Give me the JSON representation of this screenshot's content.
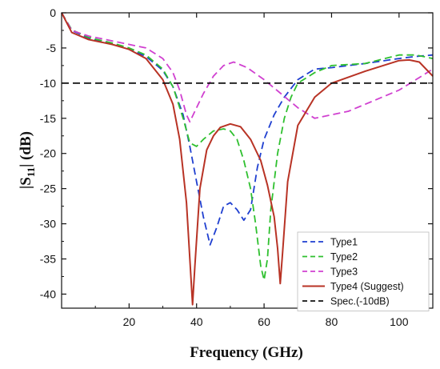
{
  "chart_data": {
    "type": "line",
    "xlabel": "Frequency (GHz)",
    "ylabel": "|S11| (dB)",
    "ylabel_parts": {
      "open": "|S",
      "sub": "11",
      "close": "| (dB)"
    },
    "xlim": [
      0,
      110
    ],
    "ylim": [
      -42,
      0
    ],
    "x_ticks": [
      20,
      40,
      60,
      80,
      100
    ],
    "y_ticks": [
      0,
      -5,
      -10,
      -15,
      -20,
      -25,
      -30,
      -35,
      -40
    ],
    "grid": false,
    "legend_position": "bottom-right",
    "series": [
      {
        "name": "Type1",
        "color": "#1f3fd0",
        "dash": "dashed",
        "x": [
          0,
          3,
          8,
          15,
          20,
          25,
          30,
          33,
          36,
          38,
          40,
          42,
          44,
          46,
          48,
          50,
          52,
          54,
          56,
          58,
          60,
          63,
          66,
          70,
          75,
          80,
          90,
          100,
          105,
          110
        ],
        "y": [
          0,
          -2.5,
          -3.6,
          -4.4,
          -5.2,
          -6.2,
          -8.2,
          -10.5,
          -14.5,
          -19,
          -24,
          -29,
          -33,
          -30.5,
          -27.5,
          -27,
          -28,
          -29.5,
          -28,
          -22,
          -18,
          -14.5,
          -12,
          -9.5,
          -8,
          -7.8,
          -7.2,
          -6.5,
          -6.2,
          -6
        ]
      },
      {
        "name": "Type2",
        "color": "#2fc02f",
        "dash": "dashed",
        "x": [
          0,
          3,
          8,
          15,
          20,
          25,
          30,
          33,
          36,
          38,
          40,
          42,
          45,
          48,
          50,
          52,
          54,
          56,
          57.5,
          59,
          60,
          61,
          62,
          64,
          66,
          68,
          70,
          75,
          80,
          90,
          100,
          105,
          110
        ],
        "y": [
          0,
          -2.4,
          -3.5,
          -4.3,
          -5,
          -6,
          -8,
          -10.5,
          -15,
          -18.5,
          -19,
          -18,
          -16.8,
          -16.5,
          -16.8,
          -18,
          -21,
          -25,
          -30,
          -36,
          -38,
          -35,
          -28,
          -20,
          -15,
          -12,
          -10,
          -8.5,
          -7.5,
          -7.2,
          -6,
          -6,
          -6.5
        ]
      },
      {
        "name": "Type3",
        "color": "#d040d0",
        "dash": "dashed",
        "x": [
          0,
          3,
          8,
          15,
          20,
          25,
          30,
          33,
          35,
          37,
          38,
          40,
          42,
          45,
          48,
          51,
          55,
          60,
          65,
          70,
          75,
          80,
          85,
          90,
          95,
          100,
          105,
          110
        ],
        "y": [
          0,
          -2.5,
          -3.3,
          -4,
          -4.5,
          -5,
          -6.5,
          -8.5,
          -11,
          -14.5,
          -15.5,
          -13.5,
          -11.5,
          -9,
          -7.5,
          -7,
          -7.8,
          -9.5,
          -11.5,
          -13.5,
          -15,
          -14.5,
          -14,
          -13,
          -12,
          -11,
          -9.5,
          -8
        ]
      },
      {
        "name": "Type4 (Suggest)",
        "color": "#b83325",
        "dash": "solid",
        "x": [
          0,
          3,
          8,
          15,
          20,
          25,
          30,
          33,
          35,
          37,
          38,
          38.8,
          39.5,
          41,
          43,
          45,
          47,
          50,
          53,
          56,
          59,
          61,
          63,
          64,
          64.8,
          65.5,
          67,
          70,
          75,
          80,
          90,
          100,
          103,
          106,
          110
        ],
        "y": [
          0,
          -2.8,
          -3.8,
          -4.5,
          -5.2,
          -6.5,
          -9.5,
          -13,
          -18,
          -27,
          -35,
          -41.5,
          -36,
          -25,
          -19.5,
          -17.5,
          -16.3,
          -15.8,
          -16.2,
          -18,
          -21,
          -24.5,
          -29,
          -33.5,
          -38.5,
          -34,
          -24,
          -16,
          -12,
          -10,
          -8.3,
          -6.8,
          -6.7,
          -7,
          -9
        ]
      },
      {
        "name": "Spec.(-10dB)",
        "color": "#111111",
        "dash": "dashed",
        "x": [
          0,
          110
        ],
        "y": [
          -10,
          -10
        ]
      }
    ]
  }
}
